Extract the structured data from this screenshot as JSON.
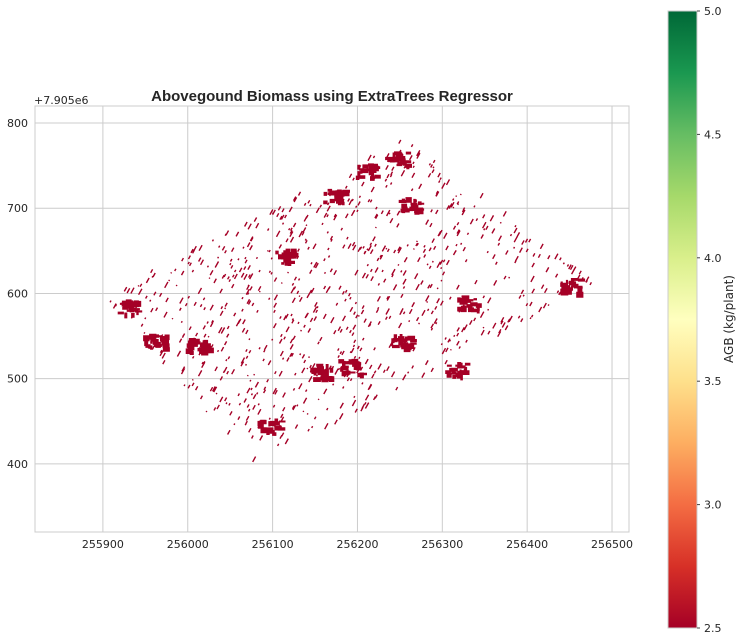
{
  "chart_data": {
    "type": "heatmap",
    "title": "Abovegound Biomass using ExtraTrees Regressor",
    "xlabel": "",
    "ylabel": "",
    "x_ticks": [
      255900,
      256000,
      256100,
      256200,
      256300,
      256400,
      256500
    ],
    "x_tick_labels": [
      "255900",
      "256000",
      "256100",
      "256200",
      "256300",
      "256400",
      "256500"
    ],
    "y_ticks": [
      400,
      500,
      600,
      700,
      800
    ],
    "y_tick_labels": [
      "400",
      "500",
      "600",
      "700",
      "800"
    ],
    "y_offset_text": "+7.905e6",
    "xlim": [
      255820,
      256520
    ],
    "ylim": [
      320,
      820
    ],
    "grid": true,
    "field_outline_corners": [
      [
        255900,
        595
      ],
      [
        256255,
        780
      ],
      [
        256480,
        610
      ],
      [
        256080,
        395
      ]
    ],
    "raster_value_observed": 2.5,
    "raster_color": "#a50026",
    "dense_patches": [
      {
        "x": 255930,
        "y": 585,
        "value": 2.5
      },
      {
        "x": 255960,
        "y": 545,
        "value": 2.5
      },
      {
        "x": 256010,
        "y": 540,
        "value": 2.5
      },
      {
        "x": 256170,
        "y": 715,
        "value": 2.5
      },
      {
        "x": 256115,
        "y": 645,
        "value": 2.5
      },
      {
        "x": 256245,
        "y": 760,
        "value": 2.5
      },
      {
        "x": 256210,
        "y": 745,
        "value": 2.5
      },
      {
        "x": 256190,
        "y": 515,
        "value": 2.5
      },
      {
        "x": 256155,
        "y": 510,
        "value": 2.5
      },
      {
        "x": 256315,
        "y": 512,
        "value": 2.5
      },
      {
        "x": 256450,
        "y": 610,
        "value": 2.5
      },
      {
        "x": 256260,
        "y": 705,
        "value": 2.5
      },
      {
        "x": 256095,
        "y": 445,
        "value": 2.5
      },
      {
        "x": 256250,
        "y": 545,
        "value": 2.5
      },
      {
        "x": 256330,
        "y": 590,
        "value": 2.5
      }
    ],
    "colorbar": {
      "label": "AGB (kg/plant)",
      "colormap": "RdYlGn",
      "min": 2.5,
      "max": 5.0,
      "ticks": [
        2.5,
        3.0,
        3.5,
        4.0,
        4.5,
        5.0
      ],
      "tick_labels": [
        "2.5",
        "3.0",
        "3.5",
        "4.0",
        "4.5",
        "5.0"
      ],
      "colors": [
        "#a50026",
        "#d73027",
        "#f46d43",
        "#fdae61",
        "#fee08b",
        "#ffffbf",
        "#d9ef8b",
        "#a6d96a",
        "#66bd63",
        "#1a9850",
        "#006837"
      ]
    }
  }
}
